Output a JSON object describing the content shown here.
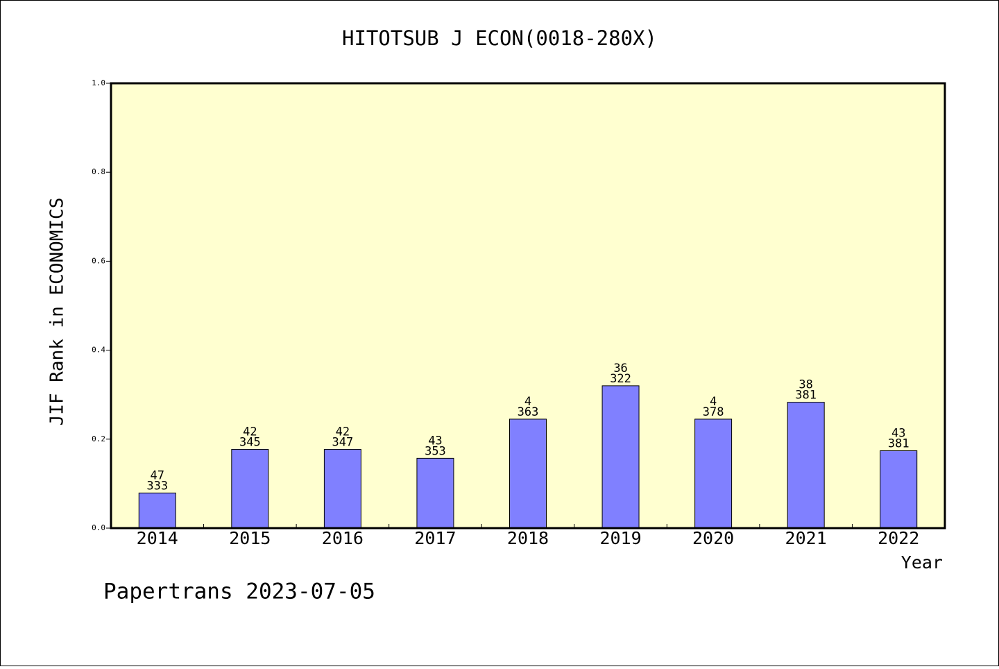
{
  "chart_data": {
    "type": "bar",
    "title": "HITOTSUB J ECON(0018-280X)",
    "xlabel": "Year",
    "ylabel": "JIF Rank in ECONOMICS",
    "footer": "Papertrans 2023-07-05",
    "ylim": [
      0.0,
      1.0
    ],
    "yticks": [
      "0.0",
      "0.2",
      "0.4",
      "0.6",
      "0.8",
      "1.0"
    ],
    "categories": [
      "2014",
      "2015",
      "2016",
      "2017",
      "2018",
      "2019",
      "2020",
      "2021",
      "2022"
    ],
    "values": [
      0.079,
      0.177,
      0.177,
      0.157,
      0.245,
      0.32,
      0.245,
      0.283,
      0.174
    ],
    "label_top": [
      "47",
      "42",
      "42",
      "43",
      "4",
      "36",
      "4",
      "38",
      "43"
    ],
    "label_bottom": [
      "333",
      "345",
      "347",
      "353",
      "363",
      "322",
      "378",
      "381",
      "381"
    ],
    "plot_background": "#ffffd0",
    "bar_color": "#8080ff",
    "grid": false
  }
}
